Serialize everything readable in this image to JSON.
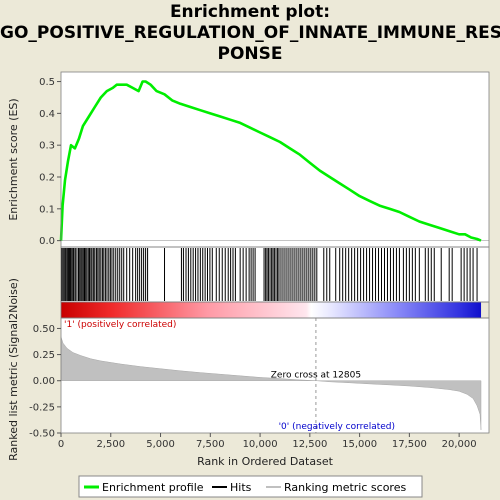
{
  "title_lines": [
    "Enrichment plot:",
    "GO_POSITIVE_REGULATION_OF_INNATE_IMMUNE_RES",
    "PONSE"
  ],
  "colors": {
    "background": "#ece9d8",
    "enrichment_line": "#00ee00",
    "hits": "#000000",
    "metric_fill": "#c0c0c0",
    "zero_cross_line": "#999999",
    "positive_label": "#cc0000",
    "negative_label": "#0000cc"
  },
  "chart_data": {
    "type": "line",
    "xlabel": "Rank in Ordered Dataset",
    "xlim": [
      0,
      21500
    ],
    "x_ticks": [
      0,
      2500,
      5000,
      7500,
      10000,
      12500,
      15000,
      17500,
      20000
    ],
    "x_tick_labels": [
      "0",
      "2,500",
      "5,000",
      "7,500",
      "10,000",
      "12,500",
      "15,000",
      "17,500",
      "20,000"
    ],
    "es_panel": {
      "ylabel": "Enrichment score (ES)",
      "ylim": [
        -0.02,
        0.53
      ],
      "y_ticks": [
        0.0,
        0.1,
        0.2,
        0.3,
        0.4,
        0.5
      ],
      "y_tick_labels": [
        "0.0",
        "0.1",
        "0.2",
        "0.3",
        "0.4",
        "0.5"
      ],
      "x": [
        0,
        80,
        200,
        350,
        500,
        700,
        900,
        1100,
        1400,
        1700,
        2000,
        2300,
        2600,
        2800,
        3000,
        3300,
        3600,
        3900,
        4100,
        4250,
        4500,
        4800,
        5200,
        5600,
        6000,
        6500,
        7000,
        7500,
        8000,
        8500,
        9000,
        9500,
        10000,
        10500,
        11000,
        11500,
        12000,
        12500,
        13000,
        13500,
        14000,
        14500,
        15000,
        15500,
        16000,
        16500,
        17000,
        17500,
        18000,
        18500,
        19000,
        19500,
        20000,
        20300,
        20600,
        20900,
        21100
      ],
      "es": [
        0.0,
        0.11,
        0.19,
        0.25,
        0.3,
        0.29,
        0.32,
        0.36,
        0.39,
        0.42,
        0.45,
        0.47,
        0.48,
        0.49,
        0.49,
        0.49,
        0.48,
        0.47,
        0.5,
        0.5,
        0.49,
        0.47,
        0.46,
        0.44,
        0.43,
        0.42,
        0.41,
        0.4,
        0.39,
        0.38,
        0.37,
        0.355,
        0.34,
        0.325,
        0.31,
        0.29,
        0.27,
        0.245,
        0.22,
        0.2,
        0.18,
        0.16,
        0.14,
        0.125,
        0.11,
        0.1,
        0.09,
        0.075,
        0.06,
        0.05,
        0.04,
        0.03,
        0.02,
        0.02,
        0.01,
        0.005,
        0.0
      ]
    },
    "metric_panel": {
      "ylabel": "Ranked list metric (Signal2Noise)",
      "ylim": [
        -0.5,
        0.6
      ],
      "y_ticks": [
        -0.5,
        -0.25,
        0.0,
        0.25,
        0.5
      ],
      "y_tick_labels": [
        "-0.50",
        "-0.25",
        "0.00",
        "0.25",
        "0.50"
      ],
      "x": [
        0,
        100,
        300,
        600,
        1000,
        1500,
        2000,
        3000,
        4000,
        5000,
        6000,
        7000,
        8000,
        9000,
        10000,
        11000,
        12000,
        12805,
        13500,
        14500,
        15500,
        16500,
        17500,
        18500,
        19500,
        20000,
        20400,
        20700,
        20900,
        21050,
        21100
      ],
      "metric": [
        0.42,
        0.36,
        0.31,
        0.27,
        0.24,
        0.21,
        0.19,
        0.16,
        0.135,
        0.115,
        0.095,
        0.078,
        0.062,
        0.047,
        0.032,
        0.02,
        0.008,
        0.0,
        -0.01,
        -0.02,
        -0.03,
        -0.04,
        -0.05,
        -0.065,
        -0.085,
        -0.1,
        -0.13,
        -0.17,
        -0.24,
        -0.32,
        -0.47
      ],
      "zero_cross_rank": 12805,
      "zero_cross_label": "Zero cross at 12805",
      "positive_label": "'1' (positively correlated)",
      "negative_label": "'0' (negatively correlated)"
    },
    "hits": [
      30,
      90,
      150,
      210,
      260,
      320,
      380,
      430,
      480,
      540,
      600,
      650,
      720,
      800,
      880,
      940,
      1000,
      1060,
      1120,
      1180,
      1240,
      1300,
      1370,
      1430,
      1500,
      1560,
      1640,
      1700,
      1780,
      1850,
      1920,
      2000,
      2080,
      2150,
      2230,
      2310,
      2400,
      2480,
      2560,
      2650,
      2750,
      2850,
      2950,
      3050,
      3150,
      3300,
      3450,
      3600,
      3750,
      3850,
      3950,
      4050,
      4150,
      4250,
      4350,
      5200,
      6050,
      6150,
      6280,
      6400,
      6520,
      6640,
      6760,
      6880,
      7000,
      7120,
      7240,
      7360,
      7480,
      7600,
      7800,
      7950,
      8100,
      8250,
      8400,
      8520,
      8640,
      8760,
      9000,
      9150,
      9300,
      9450,
      9550,
      9650,
      9750,
      10200,
      10280,
      10350,
      10420,
      10500,
      10580,
      10650,
      10720,
      10800,
      10880,
      10950,
      11050,
      11150,
      11250,
      11350,
      11450,
      11550,
      11650,
      11750,
      11850,
      11950,
      12050,
      12150,
      12250,
      12350,
      12450,
      12550,
      12650,
      12750,
      12850,
      13200,
      13350,
      13500,
      13800,
      14000,
      14150,
      14300,
      14450,
      14600,
      14750,
      14900,
      15050,
      15200,
      15350,
      15500,
      15650,
      15800,
      15950,
      16100,
      16250,
      16400,
      16550,
      16700,
      16850,
      17000,
      17200,
      17350,
      17500,
      17650,
      17800,
      18000,
      18300,
      18450,
      18600,
      18750,
      19100,
      19500,
      19650,
      20100,
      20250,
      20400,
      20550,
      20700,
      20900
    ],
    "legend": {
      "placement": "bottom",
      "items": [
        "Enrichment profile",
        "Hits",
        "Ranking metric scores"
      ]
    }
  }
}
